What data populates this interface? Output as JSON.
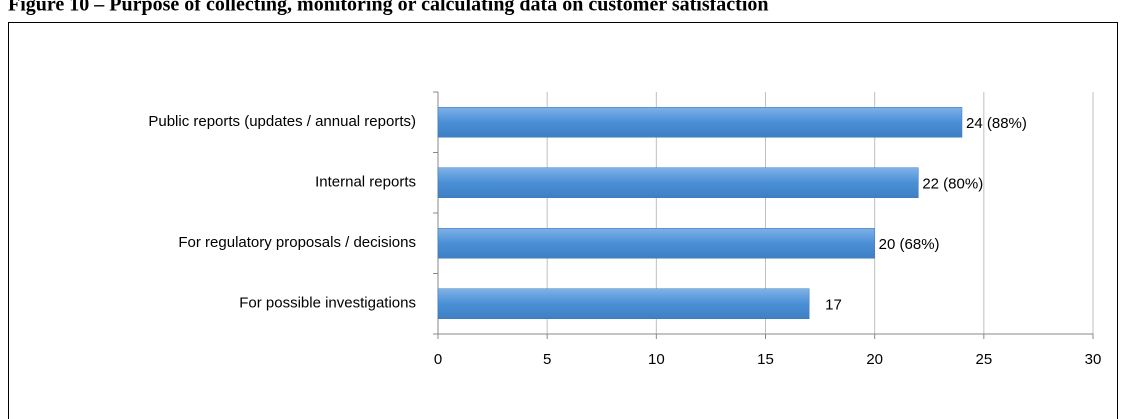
{
  "chart_data": {
    "type": "hbar",
    "title": "Figure 10 – Purpose of collecting, monitoring or calculating data on customer satisfaction",
    "categories": [
      "Public reports (updates / annual reports)",
      "Internal reports",
      "For regulatory proposals / decisions",
      "For possible investigations"
    ],
    "values": [
      24,
      22,
      20,
      17
    ],
    "value_labels": [
      "24 (88%)",
      "22 (80%)",
      "20 (68%)",
      "17"
    ],
    "color": "#4a8fd6",
    "xlim": [
      0,
      30
    ],
    "xticks": [
      0,
      5,
      10,
      15,
      20,
      25,
      30
    ],
    "grid": true
  }
}
